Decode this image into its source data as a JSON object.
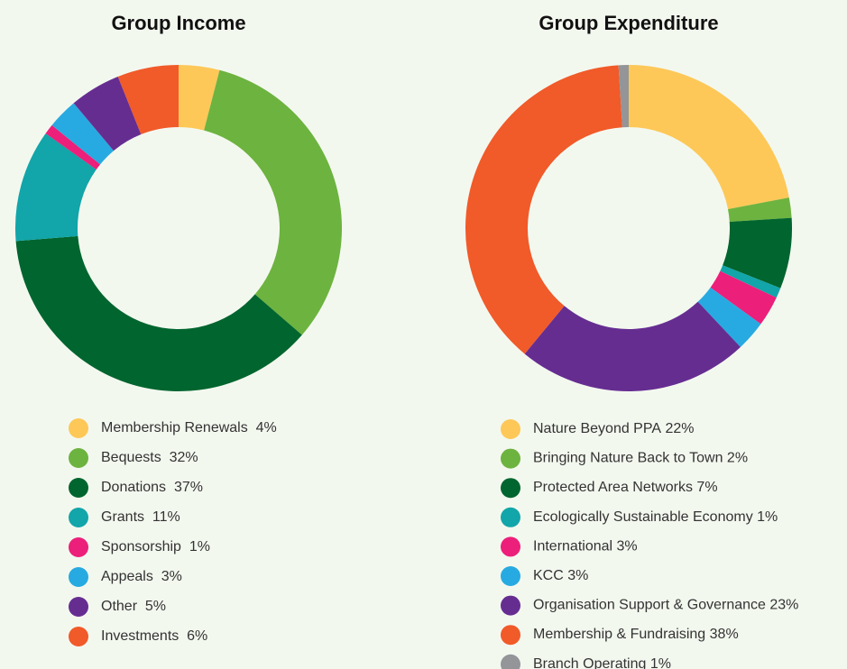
{
  "chart_data": [
    {
      "type": "donut",
      "title": "Group Income",
      "categories": [
        "Membership Renewals",
        "Bequests",
        "Donations",
        "Grants",
        "Sponsorship",
        "Appeals",
        "Other",
        "Investments"
      ],
      "values": [
        4,
        32,
        37,
        11,
        1,
        3,
        5,
        6
      ],
      "value_labels": [
        "4%",
        "32%",
        "37%",
        "11%",
        "1%",
        "3%",
        "5%",
        "6%"
      ],
      "colors": [
        "#fdc858",
        "#6db33f",
        "#00652e",
        "#12a5a9",
        "#ec1f7a",
        "#27aae1",
        "#662d91",
        "#f15a29"
      ]
    },
    {
      "type": "donut",
      "title": "Group Expenditure",
      "categories": [
        "Nature Beyond PPA",
        "Bringing Nature Back to Town",
        "Protected Area Networks",
        "Ecologically Sustainable Economy",
        "International",
        "KCC",
        "Organisation Support & Governance",
        "Membership & Fundraising",
        "Branch Operating"
      ],
      "values": [
        22,
        2,
        7,
        1,
        3,
        3,
        23,
        38,
        1
      ],
      "value_labels": [
        "22%",
        "2%",
        "7%",
        "1%",
        "3%",
        "3%",
        "23%",
        "38%",
        "1%"
      ],
      "colors": [
        "#fdc858",
        "#6db33f",
        "#00652e",
        "#12a5a9",
        "#ec1f7a",
        "#27aae1",
        "#662d91",
        "#f15a29",
        "#939598"
      ]
    }
  ]
}
